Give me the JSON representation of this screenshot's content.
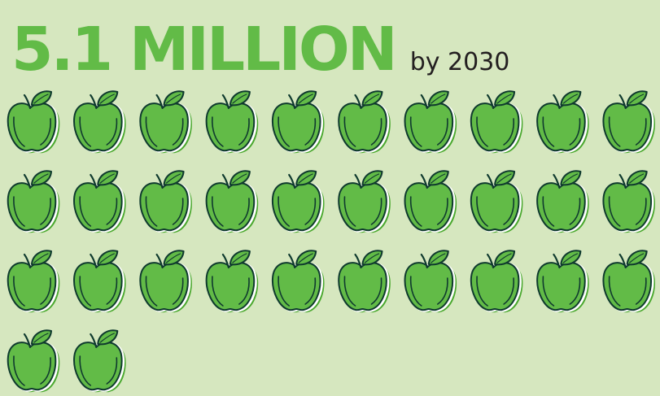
{
  "headline": {
    "value": "5.1 MILLION",
    "suffix": "by 2030"
  },
  "pictogram": {
    "icon": "apple-icon",
    "count": 32
  },
  "colors": {
    "background": "#d6e7bf",
    "headline": "#62bb47",
    "suffix": "#231f20",
    "apple_fill": "#62bb47",
    "apple_shadow": "#4aa82e",
    "apple_outline": "#0f3a2e",
    "apple_highlight": "#ffffff"
  }
}
